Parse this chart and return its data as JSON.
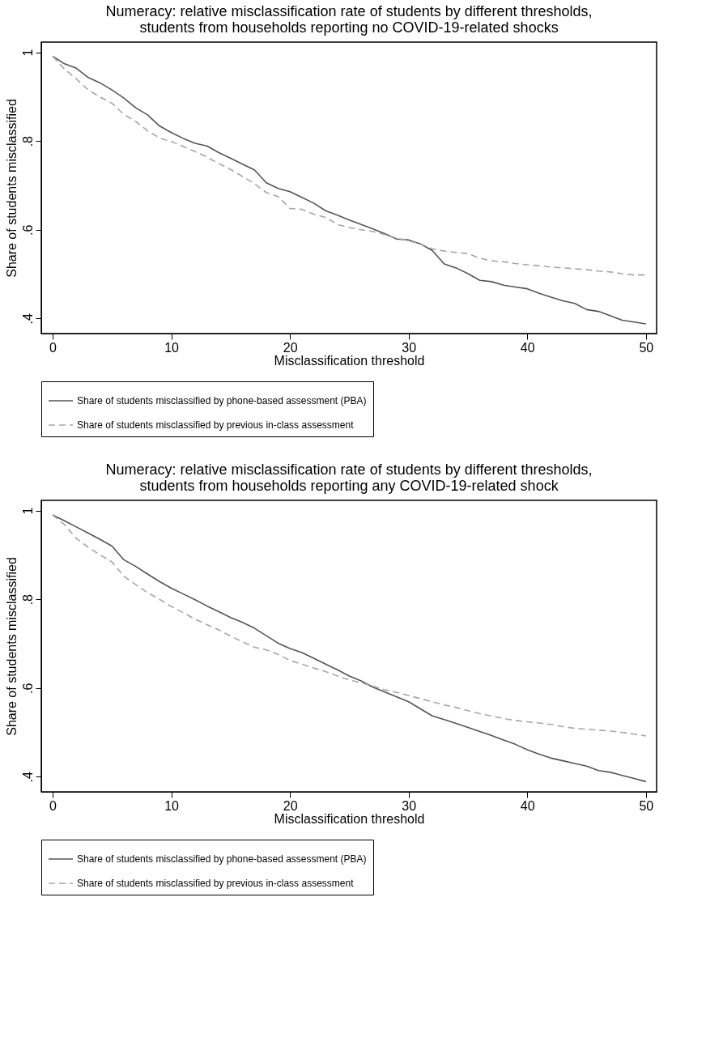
{
  "chart_data": [
    {
      "type": "line",
      "title": "Numeracy: relative misclassification rate of students by different thresholds,\nstudents from households reporting no COVID-19-related shocks",
      "xlabel": "Misclassification threshold",
      "ylabel": "Share of students misclassified",
      "x": [
        0,
        1,
        2,
        3,
        4,
        5,
        6,
        7,
        8,
        9,
        10,
        11,
        12,
        13,
        14,
        15,
        16,
        17,
        18,
        19,
        20,
        21,
        22,
        23,
        24,
        25,
        26,
        27,
        28,
        29,
        30,
        31,
        32,
        33,
        34,
        35,
        36,
        37,
        38,
        39,
        40,
        41,
        42,
        43,
        44,
        45,
        46,
        47,
        48,
        49,
        50
      ],
      "series": [
        {
          "name": "Share of students misclassified by phone-based assessment (PBA)",
          "color": "#555555",
          "line_style": "solid",
          "values": [
            0.991,
            0.974,
            0.964,
            0.943,
            0.931,
            0.915,
            0.897,
            0.875,
            0.859,
            0.834,
            0.819,
            0.806,
            0.795,
            0.789,
            0.774,
            0.761,
            0.748,
            0.735,
            0.706,
            0.693,
            0.686,
            0.673,
            0.66,
            0.643,
            0.633,
            0.622,
            0.612,
            0.602,
            0.591,
            0.579,
            0.577,
            0.568,
            0.553,
            0.523,
            0.514,
            0.501,
            0.486,
            0.483,
            0.475,
            0.471,
            0.467,
            0.457,
            0.448,
            0.44,
            0.434,
            0.42,
            0.416,
            0.406,
            0.396,
            0.392,
            0.388
          ]
        },
        {
          "name": "Share of students misclassified by previous in-class assessment",
          "color": "#a6a6a6",
          "line_style": "dashed",
          "values": [
            0.991,
            0.962,
            0.94,
            0.915,
            0.899,
            0.885,
            0.86,
            0.844,
            0.823,
            0.807,
            0.799,
            0.788,
            0.776,
            0.764,
            0.749,
            0.736,
            0.72,
            0.704,
            0.684,
            0.675,
            0.648,
            0.646,
            0.635,
            0.628,
            0.612,
            0.605,
            0.6,
            0.596,
            0.589,
            0.581,
            0.575,
            0.568,
            0.557,
            0.552,
            0.549,
            0.546,
            0.536,
            0.53,
            0.528,
            0.524,
            0.521,
            0.519,
            0.516,
            0.514,
            0.512,
            0.51,
            0.507,
            0.505,
            0.501,
            0.498,
            0.498
          ]
        }
      ],
      "xlim": [
        -0.96,
        50.9
      ],
      "xticks": [
        0,
        10,
        20,
        30,
        40,
        50
      ],
      "ylim": [
        0.366,
        1.023
      ],
      "yticks": [
        {
          "value": 0.4,
          "label": ".4"
        },
        {
          "value": 0.6,
          "label": ".6"
        },
        {
          "value": 0.8,
          "label": ".8"
        },
        1
      ],
      "legend": "bottom"
    },
    {
      "type": "line",
      "title": "Numeracy: relative misclassification rate of students by different thresholds,\nstudents from households reporting any COVID-19-related shock",
      "xlabel": "Misclassification threshold",
      "ylabel": "Share of students misclassified",
      "x": [
        0,
        1,
        2,
        3,
        4,
        5,
        6,
        7,
        8,
        9,
        10,
        11,
        12,
        13,
        14,
        15,
        16,
        17,
        18,
        19,
        20,
        21,
        22,
        23,
        24,
        25,
        26,
        27,
        28,
        29,
        30,
        31,
        32,
        33,
        34,
        35,
        36,
        37,
        38,
        39,
        40,
        41,
        42,
        43,
        44,
        45,
        46,
        47,
        48,
        49,
        50
      ],
      "series": [
        {
          "name": "Share of students misclassified by phone-based assessment (PBA)",
          "color": "#555555",
          "line_style": "solid",
          "values": [
            0.99,
            0.977,
            0.963,
            0.949,
            0.935,
            0.92,
            0.889,
            0.874,
            0.857,
            0.84,
            0.825,
            0.812,
            0.799,
            0.785,
            0.772,
            0.759,
            0.748,
            0.735,
            0.718,
            0.701,
            0.689,
            0.68,
            0.667,
            0.654,
            0.641,
            0.627,
            0.616,
            0.602,
            0.591,
            0.58,
            0.569,
            0.553,
            0.537,
            0.529,
            0.52,
            0.511,
            0.502,
            0.493,
            0.483,
            0.473,
            0.461,
            0.451,
            0.442,
            0.436,
            0.43,
            0.424,
            0.414,
            0.41,
            0.403,
            0.396,
            0.389
          ]
        },
        {
          "name": "Share of students misclassified by previous in-class assessment",
          "color": "#a6a6a6",
          "line_style": "dashed",
          "values": [
            0.99,
            0.968,
            0.937,
            0.917,
            0.9,
            0.884,
            0.852,
            0.833,
            0.815,
            0.8,
            0.784,
            0.77,
            0.755,
            0.743,
            0.731,
            0.717,
            0.704,
            0.692,
            0.686,
            0.676,
            0.662,
            0.654,
            0.645,
            0.637,
            0.627,
            0.618,
            0.612,
            0.604,
            0.596,
            0.59,
            0.583,
            0.576,
            0.569,
            0.562,
            0.556,
            0.549,
            0.542,
            0.537,
            0.531,
            0.527,
            0.524,
            0.521,
            0.518,
            0.513,
            0.509,
            0.507,
            0.505,
            0.503,
            0.5,
            0.496,
            0.492
          ]
        }
      ],
      "xlim": [
        -0.96,
        50.9
      ],
      "xticks": [
        0,
        10,
        20,
        30,
        40,
        50
      ],
      "ylim": [
        0.366,
        1.023
      ],
      "yticks": [
        {
          "value": 0.4,
          "label": ".4"
        },
        {
          "value": 0.6,
          "label": ".6"
        },
        {
          "value": 0.8,
          "label": ".8"
        },
        1
      ],
      "legend": "bottom"
    }
  ]
}
